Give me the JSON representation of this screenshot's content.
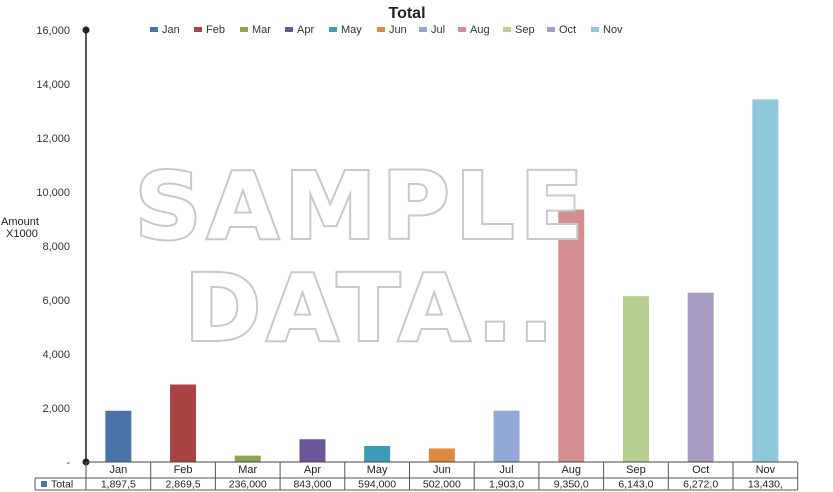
{
  "chart_data": {
    "type": "bar",
    "title": "Total",
    "ylabel_lines": [
      "Amount",
      "X1000"
    ],
    "xlabel": "",
    "categories": [
      "Jan",
      "Feb",
      "Mar",
      "Apr",
      "May",
      "Jun",
      "Jul",
      "Aug",
      "Sep",
      "Oct",
      "Nov"
    ],
    "series": [
      {
        "name": "Total",
        "values": [
          1897.5,
          2869.5,
          236,
          843,
          594,
          502,
          1903,
          9350,
          6143,
          6272,
          13430
        ]
      }
    ],
    "colors": [
      "#4a73a8",
      "#aa4444",
      "#8aa64e",
      "#6b5797",
      "#3e9bb5",
      "#e0883e",
      "#93a8d6",
      "#d38f8f",
      "#b7cf90",
      "#a89cc3",
      "#8fc8d8"
    ],
    "ylim": [
      0,
      16000
    ],
    "yticks": [
      0,
      2000,
      4000,
      6000,
      8000,
      10000,
      12000,
      14000,
      16000
    ],
    "ytick_labels": [
      "-",
      "2,000",
      "4,000",
      "6,000",
      "8,000",
      "10,000",
      "12,000",
      "14,000",
      "16,000"
    ],
    "table_row_label": "Total",
    "table_values": [
      "1,897,5",
      "2,869,5",
      "236,000",
      "843,000",
      "594,000",
      "502,000",
      "1,903,0",
      "9,350,0",
      "6,143,0",
      "6,272,0",
      "13,430,"
    ],
    "legend": [
      "Jan",
      "Feb",
      "Mar",
      "Apr",
      "May",
      "Jun",
      "Jul",
      "Aug",
      "Sep",
      "Oct",
      "Nov"
    ],
    "legend_position": "top",
    "grid": false
  },
  "watermark_lines": [
    "SAMPLE",
    "DATA.."
  ]
}
